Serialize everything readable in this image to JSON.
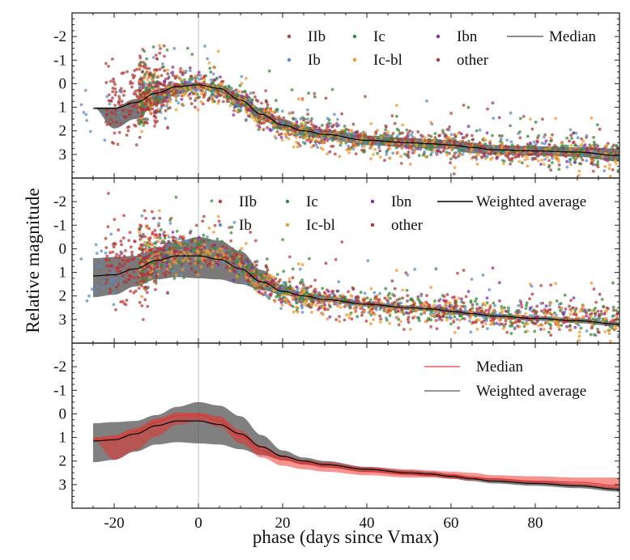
{
  "chart_data": {
    "type": "scatter",
    "xlabel": "phase (days since Vmax)",
    "ylabel": "Relative magnitude",
    "xlim": [
      -30,
      100
    ],
    "ylim_inverted": [
      4.0,
      -3.0
    ],
    "x_ticks": [
      -20,
      0,
      20,
      40,
      60,
      80
    ],
    "y_ticks": [
      -2,
      -1,
      0,
      1,
      2,
      3
    ],
    "vertical_reference_line_x": 0,
    "classes": [
      {
        "name": "IIb",
        "color": "#b5403f"
      },
      {
        "name": "Ib",
        "color": "#5b8fc9"
      },
      {
        "name": "Ic",
        "color": "#3a8a3a"
      },
      {
        "name": "Ic-bl",
        "color": "#f0982f"
      },
      {
        "name": "Ibn",
        "color": "#8a2aa8"
      },
      {
        "name": "other",
        "color": "#a9383a"
      }
    ],
    "curves": {
      "phase": [
        -25,
        -20,
        -15,
        -10,
        -5,
        0,
        5,
        10,
        15,
        20,
        25,
        30,
        40,
        50,
        55,
        60,
        65,
        70,
        80,
        90,
        100
      ],
      "median": {
        "name": "Median",
        "center": [
          1.05,
          1.05,
          0.8,
          0.4,
          0.12,
          0.05,
          0.2,
          0.7,
          1.3,
          1.75,
          2.0,
          2.15,
          2.4,
          2.5,
          2.55,
          2.6,
          2.7,
          2.8,
          2.85,
          2.9,
          3.05
        ],
        "lower": [
          1.0,
          1.9,
          1.5,
          0.9,
          0.45,
          0.2,
          0.4,
          0.95,
          1.55,
          1.95,
          2.2,
          2.35,
          2.6,
          2.7,
          2.75,
          2.75,
          2.95,
          3.0,
          3.05,
          3.1,
          3.3
        ],
        "upper": [
          1.0,
          1.0,
          0.65,
          0.25,
          0.0,
          -0.05,
          0.05,
          0.45,
          1.05,
          1.5,
          1.8,
          1.95,
          2.2,
          2.3,
          2.35,
          2.4,
          2.5,
          2.6,
          2.65,
          2.7,
          2.75
        ]
      },
      "weighted_average": {
        "name": "Weighted average",
        "center": [
          1.15,
          1.1,
          0.85,
          0.5,
          0.3,
          0.3,
          0.45,
          0.85,
          1.4,
          1.8,
          2.0,
          2.15,
          2.35,
          2.5,
          2.55,
          2.65,
          2.75,
          2.85,
          2.95,
          3.05,
          3.2
        ],
        "lower": [
          2.05,
          1.95,
          1.6,
          1.3,
          1.2,
          1.25,
          1.3,
          1.5,
          1.75,
          1.95,
          2.15,
          2.25,
          2.45,
          2.6,
          2.65,
          2.75,
          2.85,
          2.95,
          3.05,
          3.15,
          3.3
        ],
        "upper": [
          0.4,
          0.35,
          0.3,
          0.05,
          -0.3,
          -0.5,
          -0.35,
          0.1,
          0.9,
          1.55,
          1.85,
          2.0,
          2.25,
          2.4,
          2.45,
          2.55,
          2.65,
          2.75,
          2.85,
          2.95,
          3.1
        ]
      },
      "median_panel3": {
        "name": "Median",
        "center": [
          1.05,
          1.05,
          0.75,
          0.35,
          0.08,
          0.05,
          0.3,
          0.95,
          1.55,
          1.95,
          2.1,
          2.25,
          2.45,
          2.55,
          2.6,
          2.6,
          2.7,
          2.75,
          2.85,
          2.9,
          3.05
        ],
        "lower": [
          1.1,
          1.95,
          1.55,
          0.95,
          0.45,
          0.3,
          0.55,
          1.25,
          1.85,
          2.2,
          2.35,
          2.45,
          2.6,
          2.7,
          2.7,
          2.75,
          2.8,
          2.85,
          2.95,
          3.05,
          3.2
        ],
        "upper": [
          1.0,
          0.9,
          0.6,
          0.2,
          -0.05,
          -0.05,
          0.1,
          0.7,
          1.35,
          1.75,
          1.95,
          2.05,
          2.25,
          2.35,
          2.4,
          2.45,
          2.5,
          2.6,
          2.65,
          2.7,
          2.7
        ]
      }
    },
    "scatter_summary": {
      "description": "approx. points per class scattered around the light curve",
      "points_per_class": {
        "IIb": 520,
        "Ib": 300,
        "Ic": 420,
        "Ic-bl": 420,
        "Ibn": 80,
        "other": 300
      }
    },
    "panels": [
      {
        "id": "top",
        "legend": {
          "placement": "top-right",
          "entries": [
            {
              "label": "IIb",
              "kind": "dot",
              "color": "#b5403f"
            },
            {
              "label": "Ic",
              "kind": "dot",
              "color": "#3a8a3a"
            },
            {
              "label": "Ibn",
              "kind": "dot",
              "color": "#8a2aa8"
            },
            {
              "label": "Median",
              "kind": "line",
              "color": "#666666"
            },
            {
              "label": "Ib",
              "kind": "dot",
              "color": "#5b8fc9"
            },
            {
              "label": "Ic-bl",
              "kind": "dot",
              "color": "#f0982f"
            },
            {
              "label": "other",
              "kind": "dot",
              "color": "#a9383a"
            }
          ]
        },
        "scatter": true,
        "bands": [
          "median"
        ]
      },
      {
        "id": "middle",
        "legend": {
          "placement": "top-right",
          "entries": [
            {
              "label": "IIb",
              "kind": "dot",
              "color": "#c23a3a"
            },
            {
              "label": "Ic",
              "kind": "dot",
              "color": "#3a8a3a"
            },
            {
              "label": "Ibn",
              "kind": "dot",
              "color": "#8a2aa8"
            },
            {
              "label": "Weighted average",
              "kind": "line",
              "color": "#000000"
            },
            {
              "label": "Ib",
              "kind": "dot",
              "color": "#5b8fc9"
            },
            {
              "label": "Ic-bl",
              "kind": "dot",
              "color": "#f0982f"
            },
            {
              "label": "other",
              "kind": "dot",
              "color": "#a9383a"
            }
          ]
        },
        "scatter": true,
        "bands": [
          "weighted_average"
        ]
      },
      {
        "id": "bottom",
        "legend": {
          "placement": "top-right",
          "entries": [
            {
              "label": "Median",
              "kind": "line",
              "color": "#e8605e"
            },
            {
              "label": "Weighted average",
              "kind": "line",
              "color": "#777777"
            }
          ]
        },
        "scatter": false,
        "bands": [
          "weighted_average",
          "median_panel3"
        ]
      }
    ]
  }
}
